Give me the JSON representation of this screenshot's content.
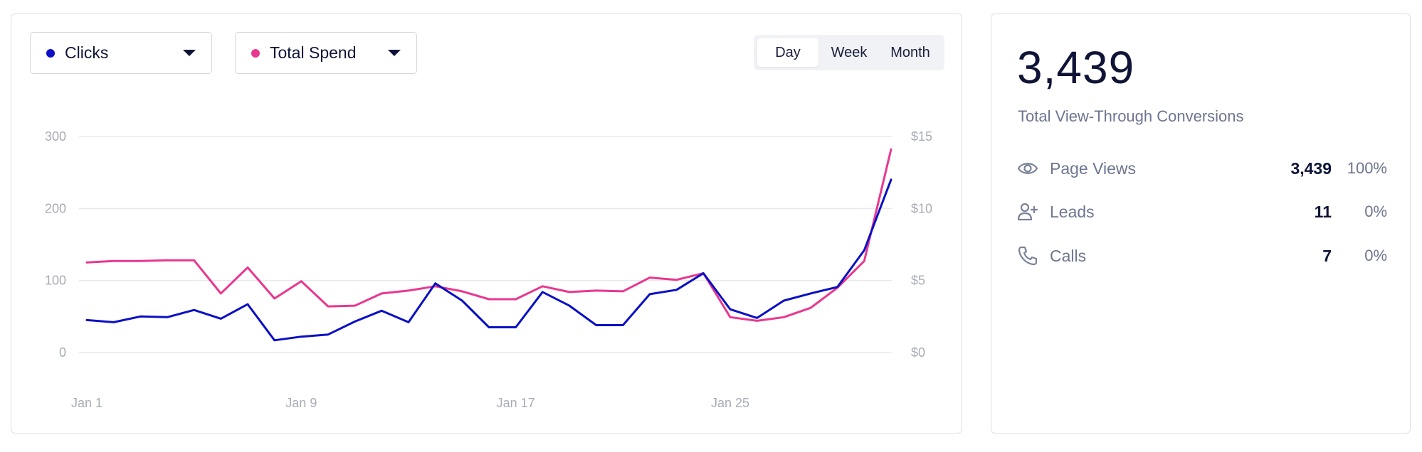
{
  "controls": {
    "metric_left": {
      "label": "Clicks",
      "color": "#0b10c4"
    },
    "metric_right": {
      "label": "Total Spend",
      "color": "#e8388f"
    },
    "periods": [
      "Day",
      "Week",
      "Month"
    ],
    "active_period": "Day"
  },
  "summary": {
    "total_value": "3,439",
    "total_label": "Total View-Through Conversions",
    "rows": [
      {
        "name": "Page Views",
        "value": "3,439",
        "percent": "100%",
        "icon": "eye-icon"
      },
      {
        "name": "Leads",
        "value": "11",
        "percent": "0%",
        "icon": "user-plus-icon"
      },
      {
        "name": "Calls",
        "value": "7",
        "percent": "0%",
        "icon": "phone-icon"
      }
    ]
  },
  "chart_data": {
    "type": "line",
    "x_tick_labels": [
      "Jan 1",
      "Jan 9",
      "Jan 17",
      "Jan 25"
    ],
    "x": [
      "Jan 1",
      "Jan 2",
      "Jan 3",
      "Jan 4",
      "Jan 5",
      "Jan 6",
      "Jan 7",
      "Jan 8",
      "Jan 9",
      "Jan 10",
      "Jan 11",
      "Jan 12",
      "Jan 13",
      "Jan 14",
      "Jan 15",
      "Jan 16",
      "Jan 17",
      "Jan 18",
      "Jan 19",
      "Jan 20",
      "Jan 21",
      "Jan 22",
      "Jan 23",
      "Jan 24",
      "Jan 25",
      "Jan 26",
      "Jan 27",
      "Jan 28",
      "Jan 29",
      "Jan 30",
      "Jan 31"
    ],
    "left_axis": {
      "ticks": [
        "0",
        "100",
        "200",
        "300"
      ],
      "ylim": [
        0,
        300
      ]
    },
    "right_axis": {
      "ticks": [
        "$0",
        "$5",
        "$10",
        "$15"
      ],
      "ylim": [
        0,
        15
      ]
    },
    "grid": true,
    "series": [
      {
        "name": "Clicks",
        "axis": "left",
        "color": "#0b10c4",
        "values": [
          45,
          42,
          50,
          49,
          59,
          47,
          67,
          17,
          22,
          25,
          43,
          58,
          42,
          96,
          72,
          35,
          35,
          84,
          65,
          38,
          38,
          81,
          87,
          110,
          60,
          48,
          72,
          82,
          91,
          142,
          240
        ]
      },
      {
        "name": "Total Spend",
        "axis": "right",
        "color": "#e8388f",
        "values": [
          6.25,
          6.35,
          6.35,
          6.4,
          6.4,
          4.1,
          5.9,
          3.75,
          4.95,
          3.2,
          3.25,
          4.1,
          4.3,
          4.6,
          4.25,
          3.7,
          3.7,
          4.6,
          4.2,
          4.3,
          4.25,
          5.2,
          5.05,
          5.5,
          2.45,
          2.2,
          2.45,
          3.1,
          4.5,
          6.35,
          14.1
        ]
      }
    ]
  }
}
